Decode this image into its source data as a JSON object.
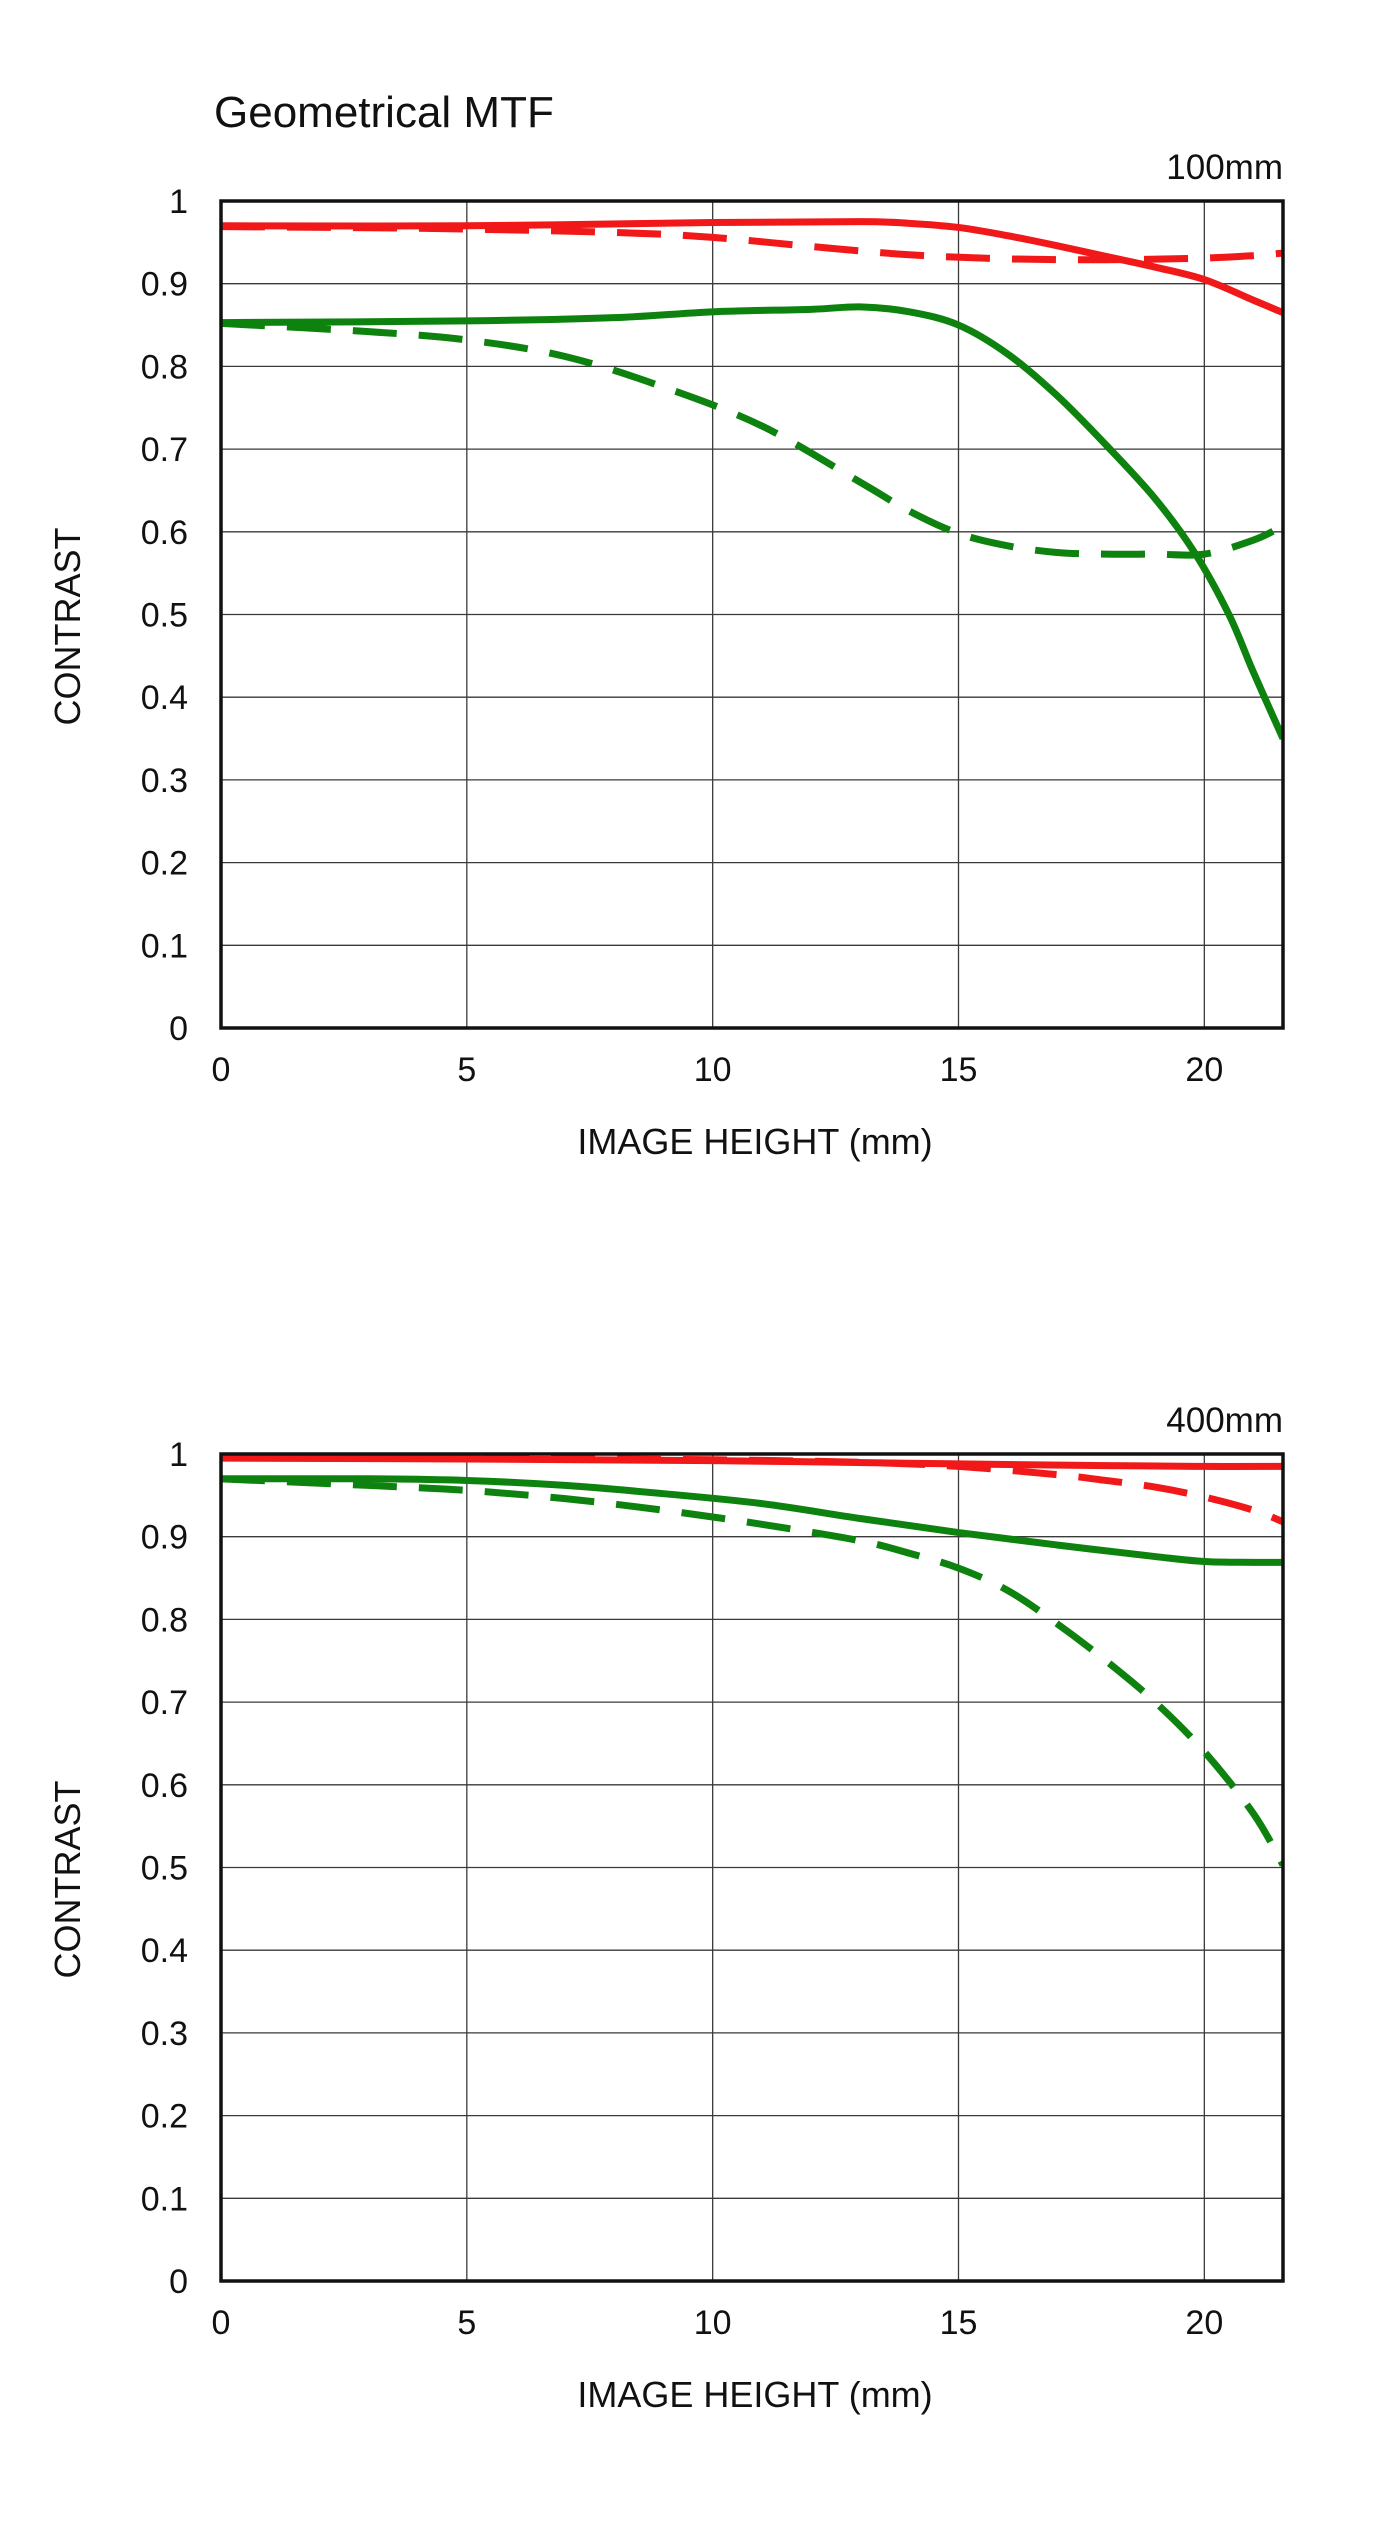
{
  "page": {
    "title": "Geometrical MTF"
  },
  "colors": {
    "red": "#f01818",
    "green": "#0e820e",
    "grid": "#3a3a3a",
    "frame": "#111111"
  },
  "chart_data": [
    {
      "type": "line",
      "focal_label": "100mm",
      "xlabel": "IMAGE HEIGHT (mm)",
      "ylabel": "CONTRAST",
      "xlim": [
        0,
        21.6
      ],
      "ylim": [
        0,
        1
      ],
      "xticks": [
        "0",
        "5",
        "10",
        "15",
        "20"
      ],
      "yticks": [
        "0",
        "0.1",
        "0.2",
        "0.3",
        "0.4",
        "0.5",
        "0.6",
        "0.7",
        "0.8",
        "0.9",
        "1"
      ],
      "grid": true,
      "series": [
        {
          "color": "red",
          "style": "solid",
          "points": [
            [
              0,
              0.97
            ],
            [
              5,
              0.97
            ],
            [
              10,
              0.974
            ],
            [
              13,
              0.975
            ],
            [
              14,
              0.973
            ],
            [
              15,
              0.968
            ],
            [
              16,
              0.958
            ],
            [
              17,
              0.946
            ],
            [
              18,
              0.933
            ],
            [
              19,
              0.92
            ],
            [
              20,
              0.905
            ],
            [
              21,
              0.88
            ],
            [
              21.6,
              0.865
            ]
          ]
        },
        {
          "color": "red",
          "style": "dashed",
          "points": [
            [
              0,
              0.969
            ],
            [
              4,
              0.967
            ],
            [
              8,
              0.962
            ],
            [
              10,
              0.956
            ],
            [
              12,
              0.945
            ],
            [
              14,
              0.935
            ],
            [
              16,
              0.93
            ],
            [
              18,
              0.929
            ],
            [
              20,
              0.931
            ],
            [
              21,
              0.934
            ],
            [
              21.6,
              0.937
            ]
          ]
        },
        {
          "color": "green",
          "style": "solid",
          "points": [
            [
              0,
              0.853
            ],
            [
              5,
              0.855
            ],
            [
              8,
              0.859
            ],
            [
              10,
              0.866
            ],
            [
              12,
              0.869
            ],
            [
              13,
              0.872
            ],
            [
              14,
              0.866
            ],
            [
              15,
              0.85
            ],
            [
              16,
              0.815
            ],
            [
              17,
              0.765
            ],
            [
              18,
              0.705
            ],
            [
              19,
              0.64
            ],
            [
              19.8,
              0.575
            ],
            [
              20.5,
              0.5
            ],
            [
              21,
              0.43
            ],
            [
              21.6,
              0.35
            ]
          ]
        },
        {
          "color": "green",
          "style": "dashed",
          "points": [
            [
              0,
              0.852
            ],
            [
              3,
              0.842
            ],
            [
              5,
              0.832
            ],
            [
              7,
              0.812
            ],
            [
              9,
              0.775
            ],
            [
              11,
              0.728
            ],
            [
              13,
              0.66
            ],
            [
              14,
              0.625
            ],
            [
              15,
              0.598
            ],
            [
              16,
              0.583
            ],
            [
              17,
              0.575
            ],
            [
              18,
              0.573
            ],
            [
              19,
              0.573
            ],
            [
              20,
              0.573
            ],
            [
              21,
              0.59
            ],
            [
              21.6,
              0.607
            ]
          ]
        }
      ]
    },
    {
      "type": "line",
      "focal_label": "400mm",
      "xlabel": "IMAGE HEIGHT (mm)",
      "ylabel": "CONTRAST",
      "xlim": [
        0,
        21.6
      ],
      "ylim": [
        0,
        1
      ],
      "xticks": [
        "0",
        "5",
        "10",
        "15",
        "20"
      ],
      "yticks": [
        "0",
        "0.1",
        "0.2",
        "0.3",
        "0.4",
        "0.5",
        "0.6",
        "0.7",
        "0.8",
        "0.9",
        "1"
      ],
      "grid": true,
      "series": [
        {
          "color": "red",
          "style": "solid",
          "points": [
            [
              0,
              0.995
            ],
            [
              5,
              0.994
            ],
            [
              10,
              0.992
            ],
            [
              15,
              0.988
            ],
            [
              18,
              0.986
            ],
            [
              20,
              0.985
            ],
            [
              21.6,
              0.985
            ]
          ]
        },
        {
          "color": "red",
          "style": "dashed",
          "points": [
            [
              0,
              0.996
            ],
            [
              5,
              0.995
            ],
            [
              10,
              0.993
            ],
            [
              13,
              0.99
            ],
            [
              15,
              0.985
            ],
            [
              17,
              0.975
            ],
            [
              18,
              0.968
            ],
            [
              19,
              0.96
            ],
            [
              20,
              0.948
            ],
            [
              21,
              0.932
            ],
            [
              21.6,
              0.918
            ]
          ]
        },
        {
          "color": "green",
          "style": "solid",
          "points": [
            [
              0,
              0.97
            ],
            [
              3,
              0.97
            ],
            [
              5,
              0.968
            ],
            [
              7,
              0.962
            ],
            [
              9,
              0.952
            ],
            [
              11,
              0.94
            ],
            [
              13,
              0.922
            ],
            [
              15,
              0.905
            ],
            [
              17,
              0.89
            ],
            [
              19,
              0.876
            ],
            [
              20,
              0.87
            ],
            [
              21,
              0.869
            ],
            [
              21.6,
              0.869
            ]
          ]
        },
        {
          "color": "green",
          "style": "dashed",
          "points": [
            [
              0,
              0.97
            ],
            [
              3,
              0.962
            ],
            [
              5,
              0.956
            ],
            [
              7,
              0.946
            ],
            [
              9,
              0.932
            ],
            [
              11,
              0.915
            ],
            [
              13,
              0.895
            ],
            [
              14,
              0.88
            ],
            [
              15,
              0.862
            ],
            [
              16,
              0.835
            ],
            [
              17,
              0.795
            ],
            [
              18,
              0.75
            ],
            [
              19,
              0.7
            ],
            [
              20,
              0.64
            ],
            [
              21,
              0.565
            ],
            [
              21.6,
              0.503
            ]
          ]
        }
      ]
    }
  ]
}
